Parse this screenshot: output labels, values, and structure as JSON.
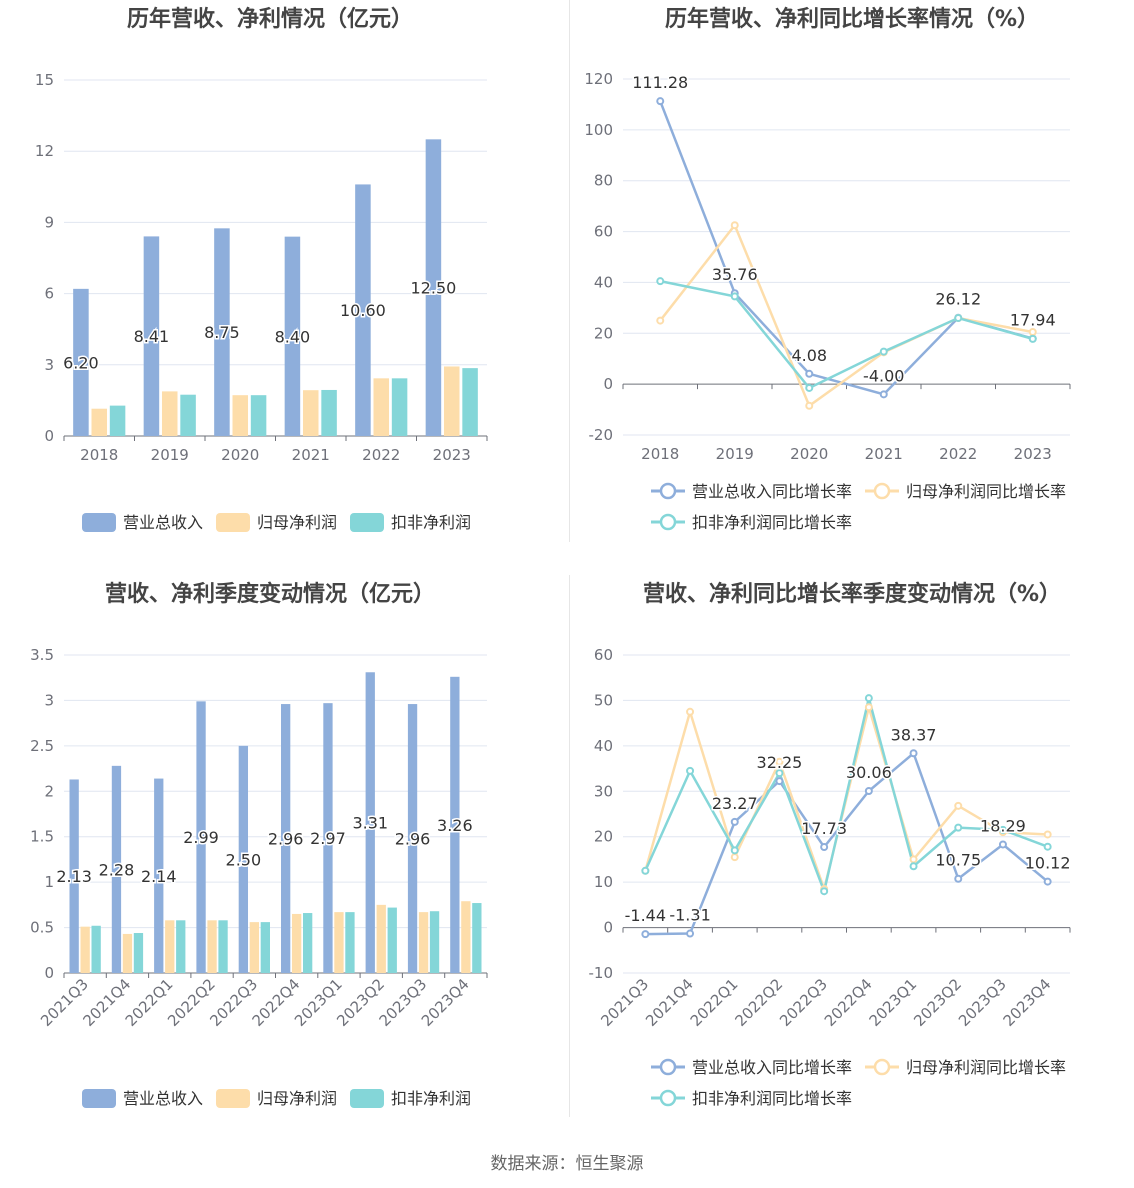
{
  "source_text": "数据来源：恒生聚源",
  "colors": {
    "revenue": "#8eaedb",
    "parent_net": "#fdddaa",
    "deducted_net": "#84d6d8"
  },
  "chart_data": [
    {
      "id": "annual_bar",
      "type": "bar",
      "title": "历年营收、净利情况（亿元）",
      "categories": [
        "2018",
        "2019",
        "2020",
        "2021",
        "2022",
        "2023"
      ],
      "ylim": [
        0,
        15
      ],
      "yticks": [
        "0",
        "3",
        "6",
        "9",
        "12",
        "15"
      ],
      "series": [
        {
          "name": "营业总收入",
          "color": "#8eaedb",
          "values": [
            6.2,
            8.41,
            8.75,
            8.4,
            10.6,
            12.5
          ],
          "labels": [
            "6.20",
            "8.41",
            "8.75",
            "8.40",
            "10.60",
            "12.50"
          ]
        },
        {
          "name": "归母净利润",
          "color": "#fdddaa",
          "values": [
            1.15,
            1.88,
            1.72,
            1.93,
            2.43,
            2.93
          ]
        },
        {
          "name": "扣非净利润",
          "color": "#84d6d8",
          "values": [
            1.28,
            1.74,
            1.72,
            1.94,
            2.43,
            2.86
          ]
        }
      ]
    },
    {
      "id": "annual_growth",
      "type": "line",
      "title": "历年营收、净利同比增长率情况（%）",
      "categories": [
        "2018",
        "2019",
        "2020",
        "2021",
        "2022",
        "2023"
      ],
      "ylim": [
        -20,
        120
      ],
      "yticks": [
        "-20",
        "0",
        "20",
        "40",
        "60",
        "80",
        "100",
        "120"
      ],
      "series": [
        {
          "name": "营业总收入同比增长率",
          "color": "#8eaedb",
          "values": [
            111.28,
            35.76,
            4.08,
            -4.0,
            26.12,
            17.94
          ],
          "labels": [
            "111.28",
            "35.76",
            "4.08",
            "-4.00",
            "26.12",
            "17.94"
          ]
        },
        {
          "name": "归母净利润同比增长率",
          "color": "#fdddaa",
          "values": [
            25.0,
            62.5,
            -8.5,
            12.5,
            26.0,
            20.5
          ]
        },
        {
          "name": "扣非净利润同比增长率",
          "color": "#84d6d8",
          "values": [
            40.5,
            34.5,
            -1.5,
            12.8,
            26.0,
            17.8
          ]
        }
      ]
    },
    {
      "id": "quarter_bar",
      "type": "bar",
      "title": "营收、净利季度变动情况（亿元）",
      "categories": [
        "2021Q3",
        "2021Q4",
        "2022Q1",
        "2022Q2",
        "2022Q3",
        "2022Q4",
        "2023Q1",
        "2023Q2",
        "2023Q3",
        "2023Q4"
      ],
      "ylim": [
        0,
        3.5
      ],
      "yticks": [
        "0",
        "0.5",
        "1",
        "1.5",
        "2",
        "2.5",
        "3",
        "3.5"
      ],
      "series": [
        {
          "name": "营业总收入",
          "color": "#8eaedb",
          "values": [
            2.13,
            2.28,
            2.14,
            2.99,
            2.5,
            2.96,
            2.97,
            3.31,
            2.96,
            3.26
          ],
          "labels": [
            "2.13",
            "2.28",
            "2.14",
            "2.99",
            "2.50",
            "2.96",
            "2.97",
            "3.31",
            "2.96",
            "3.26"
          ]
        },
        {
          "name": "归母净利润",
          "color": "#fdddaa",
          "values": [
            0.51,
            0.43,
            0.58,
            0.58,
            0.56,
            0.65,
            0.67,
            0.75,
            0.67,
            0.79
          ]
        },
        {
          "name": "扣非净利润",
          "color": "#84d6d8",
          "values": [
            0.52,
            0.44,
            0.58,
            0.58,
            0.56,
            0.66,
            0.67,
            0.72,
            0.68,
            0.77
          ]
        }
      ]
    },
    {
      "id": "quarter_growth",
      "type": "line",
      "title": "营收、净利同比增长率季度变动情况（%）",
      "categories": [
        "2021Q3",
        "2021Q4",
        "2022Q1",
        "2022Q2",
        "2022Q3",
        "2022Q4",
        "2023Q1",
        "2023Q2",
        "2023Q3",
        "2023Q4"
      ],
      "ylim": [
        -10,
        60
      ],
      "yticks": [
        "-10",
        "0",
        "10",
        "20",
        "30",
        "40",
        "50",
        "60"
      ],
      "series": [
        {
          "name": "营业总收入同比增长率",
          "color": "#8eaedb",
          "values": [
            -1.44,
            -1.31,
            23.27,
            32.25,
            17.73,
            30.06,
            38.37,
            10.75,
            18.29,
            10.12
          ],
          "labels": [
            "-1.44",
            "-1.31",
            "23.27",
            "32.25",
            "17.73",
            "30.06",
            "38.37",
            "10.75",
            "18.29",
            "10.12"
          ]
        },
        {
          "name": "归母净利润同比增长率",
          "color": "#fdddaa",
          "values": [
            12.5,
            47.5,
            15.5,
            36.5,
            8.5,
            48.5,
            15.0,
            26.8,
            21.0,
            20.5
          ]
        },
        {
          "name": "扣非净利润同比增长率",
          "color": "#84d6d8",
          "values": [
            12.5,
            34.5,
            17.0,
            34.0,
            8.0,
            50.5,
            13.5,
            22.0,
            21.5,
            17.8
          ]
        }
      ]
    }
  ]
}
